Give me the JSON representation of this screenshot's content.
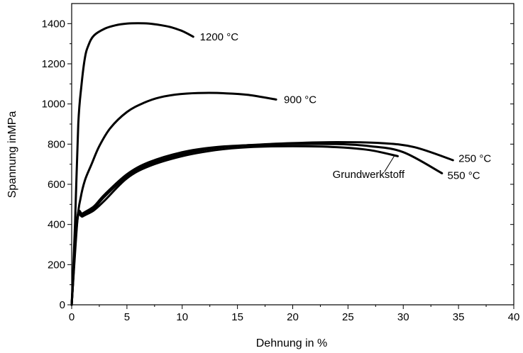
{
  "chart_data": {
    "type": "line",
    "title": "",
    "xlabel": "Dehnung in %",
    "ylabel": "Spannung inMPa",
    "xlim": [
      0,
      40
    ],
    "ylim": [
      0,
      1500
    ],
    "x_ticks": [
      0,
      5,
      10,
      15,
      20,
      25,
      30,
      35,
      40
    ],
    "y_ticks": [
      0,
      200,
      400,
      600,
      800,
      1000,
      1200,
      1400
    ],
    "grid": false,
    "legend": "none",
    "series": [
      {
        "name": "1200 °C",
        "x": [
          0,
          0.3,
          0.6,
          0.9,
          1.2,
          1.5,
          2,
          3,
          4,
          5,
          6,
          7,
          8,
          9,
          10,
          11
        ],
        "y": [
          0,
          400,
          900,
          1100,
          1230,
          1290,
          1340,
          1375,
          1392,
          1400,
          1402,
          1400,
          1393,
          1382,
          1363,
          1335
        ]
      },
      {
        "name": "900 °C",
        "x": [
          0,
          0.5,
          0.8,
          1.2,
          1.8,
          2.5,
          3.5,
          5,
          6.5,
          8,
          10,
          12,
          14,
          16,
          18.5
        ],
        "y": [
          0,
          410,
          530,
          620,
          700,
          790,
          880,
          960,
          1005,
          1033,
          1050,
          1055,
          1053,
          1045,
          1022
        ]
      },
      {
        "name": "250 °C",
        "x": [
          0,
          0.5,
          1,
          2,
          3,
          5,
          7,
          10,
          13,
          16,
          20,
          24,
          28,
          31,
          34.5
        ],
        "y": [
          0,
          420,
          450,
          480,
          540,
          640,
          700,
          750,
          780,
          795,
          805,
          810,
          805,
          785,
          720
        ]
      },
      {
        "name": "550 °C",
        "x": [
          0,
          0.5,
          1,
          2,
          3,
          5,
          7,
          10,
          13,
          16,
          20,
          24,
          27,
          30,
          33.5
        ],
        "y": [
          0,
          430,
          455,
          490,
          550,
          650,
          710,
          760,
          785,
          795,
          800,
          800,
          790,
          760,
          655
        ]
      },
      {
        "name": "Grundwerkstoff",
        "x": [
          0,
          0.5,
          1,
          2,
          3,
          5,
          7,
          10,
          13,
          16,
          20,
          24,
          27,
          29.5
        ],
        "y": [
          0,
          415,
          440,
          470,
          520,
          630,
          690,
          740,
          770,
          785,
          790,
          785,
          770,
          740
        ]
      }
    ],
    "annotations": [
      {
        "text": "1200 °C",
        "x": 11.6,
        "y": 1335
      },
      {
        "text": "900 °C",
        "x": 19.2,
        "y": 1022
      },
      {
        "text": "250 °C",
        "x": 35.0,
        "y": 728
      },
      {
        "text": "550 °C",
        "x": 34.0,
        "y": 645
      },
      {
        "text": "Grundwerkstoff",
        "x": 23.6,
        "y": 650
      }
    ]
  }
}
